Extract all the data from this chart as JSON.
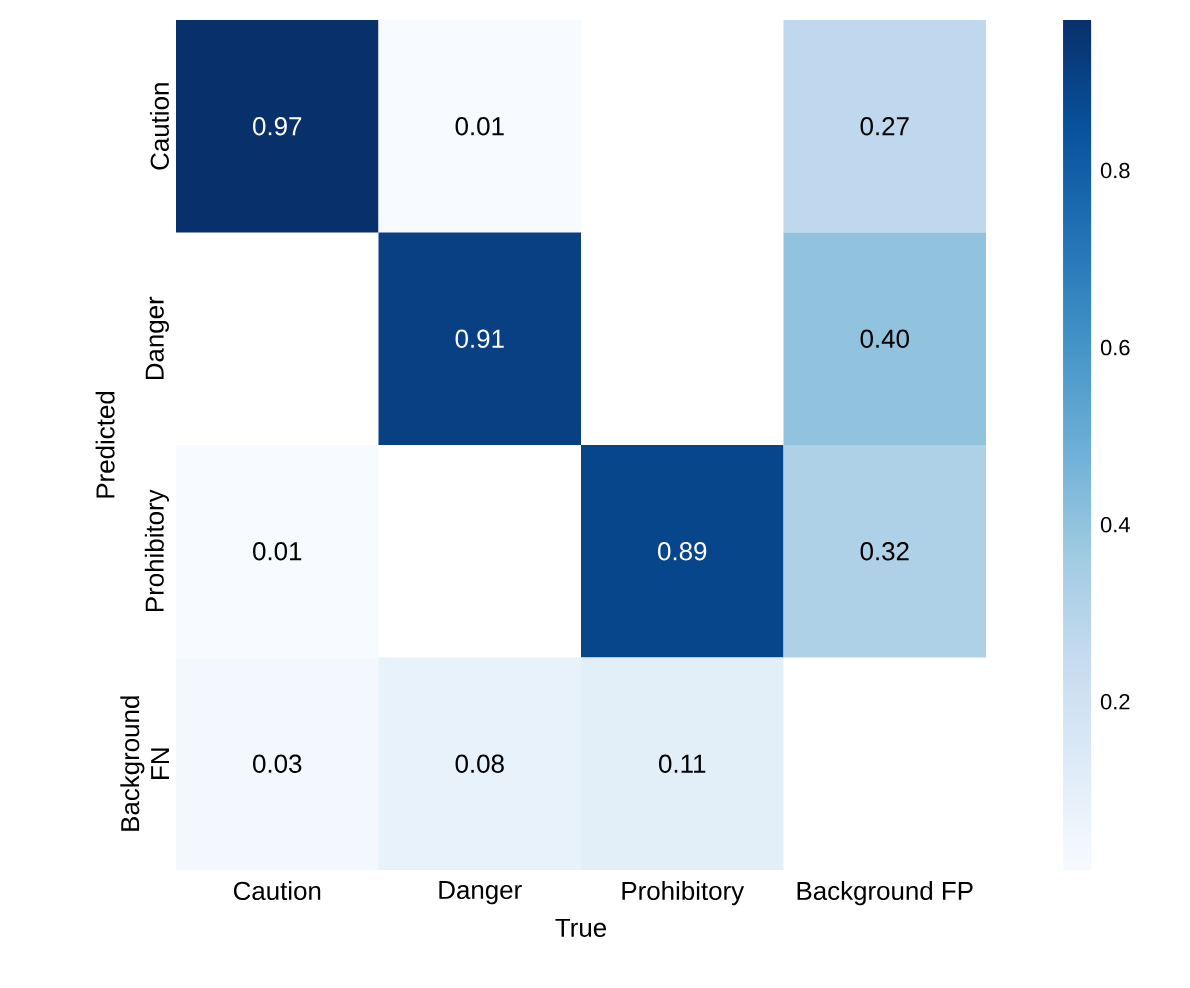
{
  "chart_data": {
    "type": "heatmap",
    "xlabel": "True",
    "ylabel": "Predicted",
    "categories": [
      "Caution",
      "Danger",
      "Prohibitory",
      "Background FP"
    ],
    "y_categories": [
      "Caution",
      "Danger",
      "Prohibitory",
      "Background FN"
    ],
    "cells": [
      [
        0.97,
        0.01,
        null,
        0.27
      ],
      [
        null,
        0.91,
        null,
        0.4
      ],
      [
        0.01,
        null,
        0.89,
        0.32
      ],
      [
        0.03,
        0.08,
        0.11,
        null
      ]
    ],
    "cell_labels": [
      [
        "0.97",
        "0.01",
        null,
        "0.27"
      ],
      [
        null,
        "0.91",
        null,
        "0.40"
      ],
      [
        "0.01",
        null,
        "0.89",
        "0.32"
      ],
      [
        "0.03",
        "0.08",
        "0.11",
        null
      ]
    ],
    "clim": [
      0.01,
      0.97
    ],
    "cticks": [
      0.2,
      0.4,
      0.6,
      0.8
    ],
    "grid": false
  }
}
